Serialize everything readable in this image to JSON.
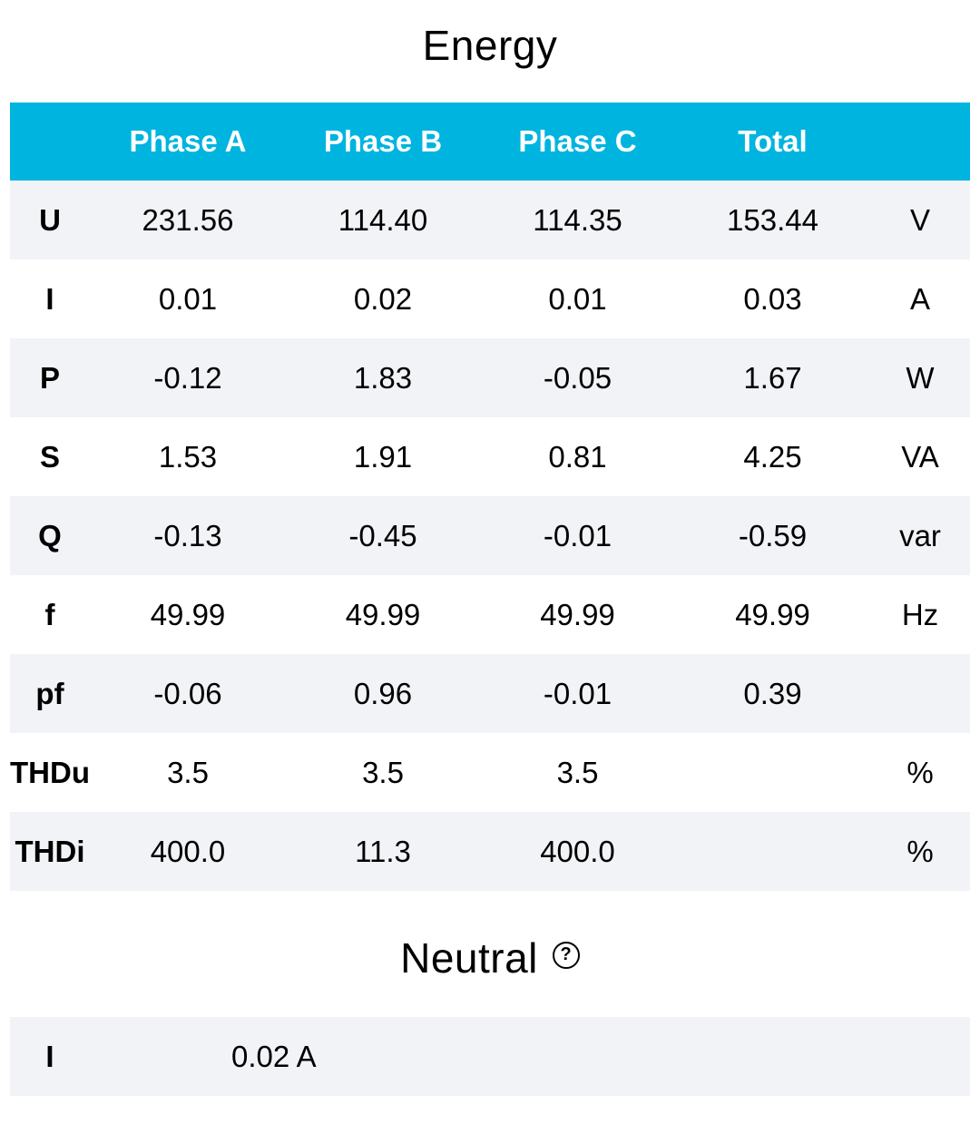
{
  "energy": {
    "title": "Energy",
    "headers": [
      "",
      "Phase A",
      "Phase B",
      "Phase C",
      "Total",
      ""
    ],
    "rows": [
      {
        "label": "U",
        "a": "231.56",
        "b": "114.40",
        "c": "114.35",
        "total": "153.44",
        "unit": "V"
      },
      {
        "label": "I",
        "a": "0.01",
        "b": "0.02",
        "c": "0.01",
        "total": "0.03",
        "unit": "A"
      },
      {
        "label": "P",
        "a": "-0.12",
        "b": "1.83",
        "c": "-0.05",
        "total": "1.67",
        "unit": "W"
      },
      {
        "label": "S",
        "a": "1.53",
        "b": "1.91",
        "c": "0.81",
        "total": "4.25",
        "unit": "VA"
      },
      {
        "label": "Q",
        "a": "-0.13",
        "b": "-0.45",
        "c": "-0.01",
        "total": "-0.59",
        "unit": "var"
      },
      {
        "label": "f",
        "a": "49.99",
        "b": "49.99",
        "c": "49.99",
        "total": "49.99",
        "unit": "Hz"
      },
      {
        "label": "pf",
        "a": "-0.06",
        "b": "0.96",
        "c": "-0.01",
        "total": "0.39",
        "unit": ""
      },
      {
        "label": "THDu",
        "a": "3.5",
        "b": "3.5",
        "c": "3.5",
        "total": "",
        "unit": "%"
      },
      {
        "label": "THDi",
        "a": "400.0",
        "b": "11.3",
        "c": "400.0",
        "total": "",
        "unit": "%"
      }
    ]
  },
  "neutral": {
    "title": "Neutral",
    "help_icon": "help-circle-icon",
    "help_glyph": "?",
    "rows": [
      {
        "label": "I",
        "value": "0.02 A"
      }
    ]
  },
  "colors": {
    "header_bg": "#00b4e0",
    "header_text": "#ffffff",
    "row_alt_bg": "#f2f3f7"
  }
}
